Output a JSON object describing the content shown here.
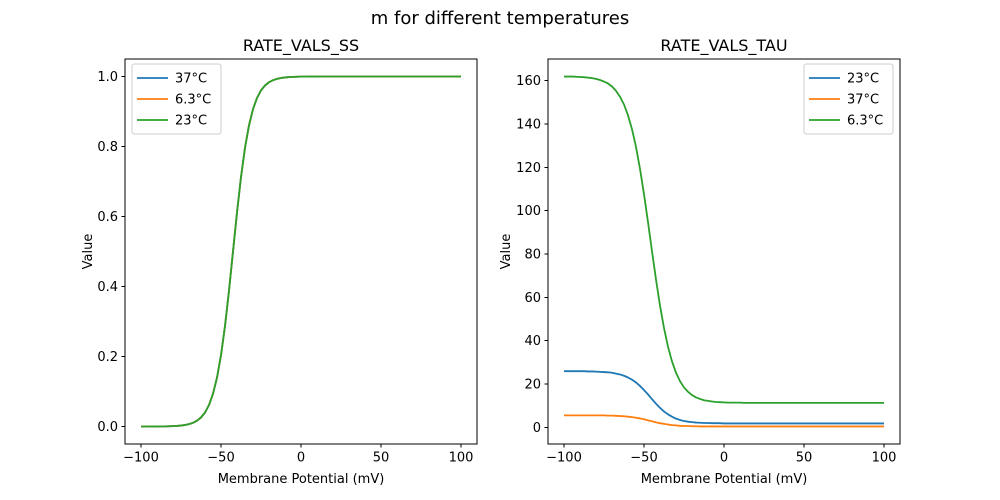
{
  "figure": {
    "suptitle": "m for different temperatures",
    "background": "#ffffff",
    "text_color": "#000000",
    "spine_color": "#000000",
    "legend_border_color": "#cccccc"
  },
  "chart_data": [
    {
      "id": "ss",
      "type": "line",
      "title": "RATE_VALS_SS",
      "xlabel": "Membrane Potential (mV)",
      "ylabel": "Value",
      "xlim": [
        -110,
        110
      ],
      "ylim": [
        -0.05,
        1.05
      ],
      "xticks": [
        -100,
        -50,
        0,
        50,
        100
      ],
      "xtick_labels": [
        "−100",
        "−50",
        "0",
        "50",
        "100"
      ],
      "yticks": [
        0,
        0.2,
        0.4,
        0.6,
        0.8,
        1.0
      ],
      "ytick_labels": [
        "0.0",
        "0.2",
        "0.4",
        "0.6",
        "0.8",
        "1.0"
      ],
      "grid": false,
      "legend_position": "upper-left",
      "x": [
        -100,
        -97.5,
        -95,
        -92.5,
        -90,
        -87.5,
        -85,
        -82.5,
        -80,
        -77.5,
        -75,
        -72.5,
        -70,
        -67.5,
        -65,
        -62.5,
        -60,
        -57.5,
        -55,
        -52.5,
        -50,
        -47.5,
        -45,
        -42.5,
        -40,
        -37.5,
        -35,
        -32.5,
        -30,
        -27.5,
        -25,
        -22.5,
        -20,
        -17.5,
        -15,
        -12.5,
        -10,
        -7.5,
        -5,
        -2.5,
        0,
        2.5,
        5,
        7.5,
        10,
        12.5,
        15,
        17.5,
        20,
        22.5,
        25,
        27.5,
        30,
        32.5,
        35,
        37.5,
        40,
        42.5,
        45,
        47.5,
        50,
        52.5,
        55,
        57.5,
        60,
        62.5,
        65,
        67.5,
        70,
        72.5,
        75,
        77.5,
        80,
        82.5,
        85,
        87.5,
        90,
        92.5,
        95,
        97.5,
        100
      ],
      "series": [
        {
          "name": "37°C",
          "color": "#1f77b4",
          "values": [
            0,
            0,
            0.0001,
            0.0001,
            0.0002,
            0.0003,
            0.0004,
            0.0007,
            0.0011,
            0.0017,
            0.0027,
            0.0043,
            0.0067,
            0.0105,
            0.0165,
            0.0257,
            0.0399,
            0.0614,
            0.0934,
            0.1397,
            0.2037,
            0.2872,
            0.3883,
            0.5,
            0.6117,
            0.7128,
            0.7964,
            0.8604,
            0.9066,
            0.9386,
            0.9601,
            0.9743,
            0.9836,
            0.9895,
            0.9933,
            0.9957,
            0.9973,
            0.9983,
            0.9989,
            0.9993,
            0.9996,
            0.9997,
            0.9998,
            0.9999,
            0.9999,
            1,
            1,
            1,
            1,
            1,
            1,
            1,
            1,
            1,
            1,
            1,
            1,
            1,
            1,
            1,
            1,
            1,
            1,
            1,
            1,
            1,
            1,
            1,
            1,
            1,
            1,
            1,
            1,
            1,
            1,
            1,
            1,
            1,
            1,
            1,
            1
          ]
        },
        {
          "name": "6.3°C",
          "color": "#ff7f0e",
          "values": [
            0,
            0,
            0.0001,
            0.0001,
            0.0002,
            0.0003,
            0.0004,
            0.0007,
            0.0011,
            0.0017,
            0.0027,
            0.0043,
            0.0067,
            0.0105,
            0.0165,
            0.0257,
            0.0399,
            0.0614,
            0.0934,
            0.1397,
            0.2037,
            0.2872,
            0.3883,
            0.5,
            0.6117,
            0.7128,
            0.7964,
            0.8604,
            0.9066,
            0.9386,
            0.9601,
            0.9743,
            0.9836,
            0.9895,
            0.9933,
            0.9957,
            0.9973,
            0.9983,
            0.9989,
            0.9993,
            0.9996,
            0.9997,
            0.9998,
            0.9999,
            0.9999,
            1,
            1,
            1,
            1,
            1,
            1,
            1,
            1,
            1,
            1,
            1,
            1,
            1,
            1,
            1,
            1,
            1,
            1,
            1,
            1,
            1,
            1,
            1,
            1,
            1,
            1,
            1,
            1,
            1,
            1,
            1,
            1,
            1,
            1,
            1,
            1
          ]
        },
        {
          "name": "23°C",
          "color": "#2ca02c",
          "values": [
            0,
            0,
            0.0001,
            0.0001,
            0.0002,
            0.0003,
            0.0004,
            0.0007,
            0.0011,
            0.0017,
            0.0027,
            0.0043,
            0.0067,
            0.0105,
            0.0165,
            0.0257,
            0.0399,
            0.0614,
            0.0934,
            0.1397,
            0.2037,
            0.2872,
            0.3883,
            0.5,
            0.6117,
            0.7128,
            0.7964,
            0.8604,
            0.9066,
            0.9386,
            0.9601,
            0.9743,
            0.9836,
            0.9895,
            0.9933,
            0.9957,
            0.9973,
            0.9983,
            0.9989,
            0.9993,
            0.9996,
            0.9997,
            0.9998,
            0.9999,
            0.9999,
            1,
            1,
            1,
            1,
            1,
            1,
            1,
            1,
            1,
            1,
            1,
            1,
            1,
            1,
            1,
            1,
            1,
            1,
            1,
            1,
            1,
            1,
            1,
            1,
            1,
            1,
            1,
            1,
            1,
            1,
            1,
            1,
            1,
            1,
            1,
            1
          ]
        }
      ]
    },
    {
      "id": "tau",
      "type": "line",
      "title": "RATE_VALS_TAU",
      "xlabel": "Membrane Potential (mV)",
      "ylabel": "Value",
      "xlim": [
        -110,
        110
      ],
      "ylim": [
        -7.7,
        170
      ],
      "xticks": [
        -100,
        -50,
        0,
        50,
        100
      ],
      "xtick_labels": [
        "−100",
        "−50",
        "0",
        "50",
        "100"
      ],
      "yticks": [
        0,
        20,
        40,
        60,
        80,
        100,
        120,
        140,
        160
      ],
      "ytick_labels": [
        "0",
        "20",
        "40",
        "60",
        "80",
        "100",
        "120",
        "140",
        "160"
      ],
      "grid": false,
      "legend_position": "upper-right",
      "x": [
        -100,
        -97.5,
        -95,
        -92.5,
        -90,
        -87.5,
        -85,
        -82.5,
        -80,
        -77.5,
        -75,
        -72.5,
        -70,
        -67.5,
        -65,
        -62.5,
        -60,
        -57.5,
        -55,
        -52.5,
        -50,
        -47.5,
        -45,
        -42.5,
        -40,
        -37.5,
        -35,
        -32.5,
        -30,
        -27.5,
        -25,
        -22.5,
        -20,
        -17.5,
        -15,
        -12.5,
        -10,
        -7.5,
        -5,
        -2.5,
        0,
        2.5,
        5,
        7.5,
        10,
        12.5,
        15,
        17.5,
        20,
        22.5,
        25,
        27.5,
        30,
        32.5,
        35,
        37.5,
        40,
        42.5,
        45,
        47.5,
        50,
        52.5,
        55,
        57.5,
        60,
        62.5,
        65,
        67.5,
        70,
        72.5,
        75,
        77.5,
        80,
        82.5,
        85,
        87.5,
        90,
        92.5,
        95,
        97.5,
        100
      ],
      "series": [
        {
          "name": "23°C",
          "color": "#1f77b4",
          "values": [
            25.9,
            25.9,
            25.9,
            25.9,
            25.9,
            25.9,
            25.8,
            25.8,
            25.7,
            25.6,
            25.5,
            25.4,
            25.2,
            24.8,
            24.4,
            23.8,
            23,
            22,
            20.7,
            19.1,
            17.2,
            15.2,
            13,
            10.9,
            9,
            7.3,
            6,
            4.9,
            4,
            3.4,
            2.9,
            2.6,
            2.4,
            2.2,
            2.1,
            2,
            2,
            1.9,
            1.9,
            1.9,
            1.8,
            1.8,
            1.8,
            1.8,
            1.8,
            1.8,
            1.8,
            1.8,
            1.8,
            1.8,
            1.8,
            1.8,
            1.8,
            1.8,
            1.8,
            1.8,
            1.8,
            1.8,
            1.8,
            1.8,
            1.8,
            1.8,
            1.8,
            1.8,
            1.8,
            1.8,
            1.8,
            1.8,
            1.8,
            1.8,
            1.8,
            1.8,
            1.8,
            1.8,
            1.8,
            1.8,
            1.8,
            1.8,
            1.8,
            1.8,
            1.8
          ]
        },
        {
          "name": "37°C",
          "color": "#ff7f0e",
          "values": [
            5.5,
            5.5,
            5.5,
            5.5,
            5.5,
            5.5,
            5.5,
            5.5,
            5.5,
            5.5,
            5.5,
            5.4,
            5.4,
            5.3,
            5.2,
            5.1,
            4.9,
            4.7,
            4.4,
            4.1,
            3.7,
            3.2,
            2.8,
            2.3,
            1.9,
            1.6,
            1.3,
            1,
            0.9,
            0.7,
            0.6,
            0.6,
            0.5,
            0.5,
            0.4,
            0.4,
            0.4,
            0.4,
            0.4,
            0.4,
            0.4,
            0.4,
            0.4,
            0.4,
            0.4,
            0.4,
            0.4,
            0.4,
            0.4,
            0.4,
            0.4,
            0.4,
            0.4,
            0.4,
            0.4,
            0.4,
            0.4,
            0.4,
            0.4,
            0.4,
            0.4,
            0.4,
            0.4,
            0.4,
            0.4,
            0.4,
            0.4,
            0.4,
            0.4,
            0.4,
            0.4,
            0.4,
            0.4,
            0.4,
            0.4,
            0.4,
            0.4,
            0.4,
            0.4,
            0.4,
            0.4
          ]
        },
        {
          "name": "6.3°C",
          "color": "#2ca02c",
          "values": [
            161.9,
            161.9,
            161.9,
            161.8,
            161.7,
            161.6,
            161.4,
            161.2,
            160.8,
            160.3,
            159.6,
            158.7,
            157.3,
            155.3,
            152.6,
            149,
            144,
            137.6,
            129.4,
            119.3,
            107.6,
            94.7,
            81.3,
            68.2,
            56.2,
            45.8,
            37.2,
            30.4,
            25.2,
            21.3,
            18.4,
            16.4,
            14.9,
            13.8,
            13.1,
            12.5,
            12.2,
            11.9,
            11.7,
            11.6,
            11.5,
            11.4,
            11.4,
            11.4,
            11.4,
            11.3,
            11.3,
            11.3,
            11.3,
            11.3,
            11.3,
            11.3,
            11.3,
            11.3,
            11.3,
            11.3,
            11.3,
            11.3,
            11.3,
            11.3,
            11.3,
            11.3,
            11.3,
            11.3,
            11.3,
            11.3,
            11.3,
            11.3,
            11.3,
            11.3,
            11.3,
            11.3,
            11.3,
            11.3,
            11.3,
            11.3,
            11.3,
            11.3,
            11.3,
            11.3,
            11.3
          ]
        }
      ]
    }
  ]
}
